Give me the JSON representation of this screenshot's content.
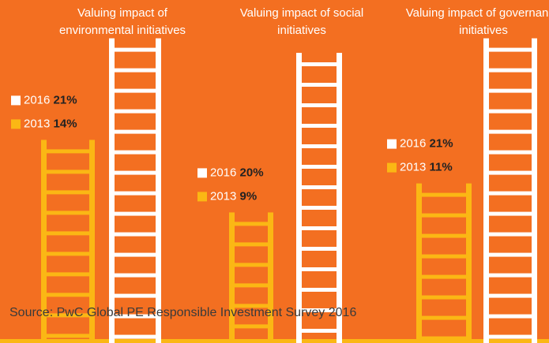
{
  "chart_data": {
    "type": "ladder",
    "categories": [
      "Valuing impact of environmental initiatives",
      "Valuing impact of social initiatives",
      "Valuing impact of governance initiatives"
    ],
    "series": [
      {
        "name": "2016",
        "color": "#ffffff",
        "values": [
          21,
          20,
          21
        ],
        "value_labels": [
          "21%",
          "20%",
          "21%"
        ]
      },
      {
        "name": "2013",
        "color": "#fbb714",
        "values": [
          14,
          9,
          11
        ],
        "value_labels": [
          "14%",
          "9%",
          "11%"
        ]
      }
    ],
    "source": "Source: PwC Global PE Responsible Investment Survey 2016"
  }
}
